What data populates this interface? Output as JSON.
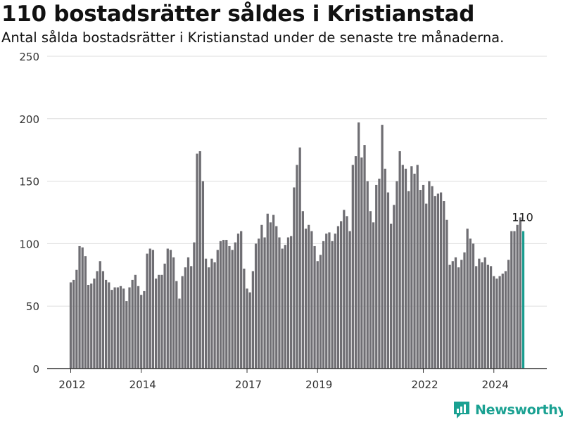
{
  "title": "110 bostadsrätter såldes i Kristianstad",
  "subtitle": "Antal sålda bostadsrätter i Kristianstad under de senaste tre månaderna.",
  "brand": {
    "name": "Newsworthy",
    "icon": "newsworthy-logo-icon"
  },
  "colors": {
    "bar": "#6f6e73",
    "highlight": "#1a9c8f",
    "brand": "#1aa192",
    "grid": "#dddddd"
  },
  "chart_data": {
    "type": "bar",
    "title": "110 bostadsrätter såldes i Kristianstad",
    "subtitle": "Antal sålda bostadsrätter i Kristianstad under de senaste tre månaderna.",
    "xlabel": "",
    "ylabel": "",
    "ylim": [
      0,
      250
    ],
    "yticks": [
      0,
      50,
      100,
      150,
      200,
      250
    ],
    "xtick_labels": [
      "2012",
      "2014",
      "2017",
      "2019",
      "2022",
      "2024"
    ],
    "grid": true,
    "annotation": "110",
    "highlight_last": true,
    "values": [
      69,
      71,
      79,
      98,
      97,
      90,
      67,
      68,
      72,
      78,
      86,
      78,
      71,
      69,
      63,
      65,
      65,
      66,
      64,
      54,
      65,
      71,
      75,
      66,
      59,
      62,
      92,
      96,
      95,
      72,
      75,
      75,
      84,
      96,
      95,
      89,
      70,
      56,
      74,
      81,
      89,
      82,
      101,
      172,
      174,
      150,
      88,
      81,
      88,
      85,
      95,
      102,
      103,
      103,
      98,
      95,
      101,
      108,
      110,
      80,
      64,
      61,
      78,
      100,
      104,
      115,
      105,
      124,
      117,
      123,
      114,
      105,
      96,
      99,
      105,
      106,
      145,
      163,
      177,
      126,
      112,
      115,
      110,
      98,
      86,
      91,
      102,
      108,
      109,
      102,
      108,
      114,
      118,
      127,
      122,
      110,
      163,
      170,
      197,
      169,
      179,
      150,
      126,
      117,
      147,
      152,
      195,
      160,
      141,
      116,
      131,
      150,
      174,
      163,
      160,
      142,
      162,
      156,
      163,
      143,
      147,
      132,
      150,
      146,
      138,
      140,
      141,
      134,
      119,
      83,
      86,
      89,
      81,
      87,
      93,
      112,
      104,
      100,
      82,
      88,
      85,
      89,
      83,
      82,
      74,
      72,
      74,
      76,
      78,
      87,
      110,
      110,
      115,
      121,
      110
    ]
  }
}
